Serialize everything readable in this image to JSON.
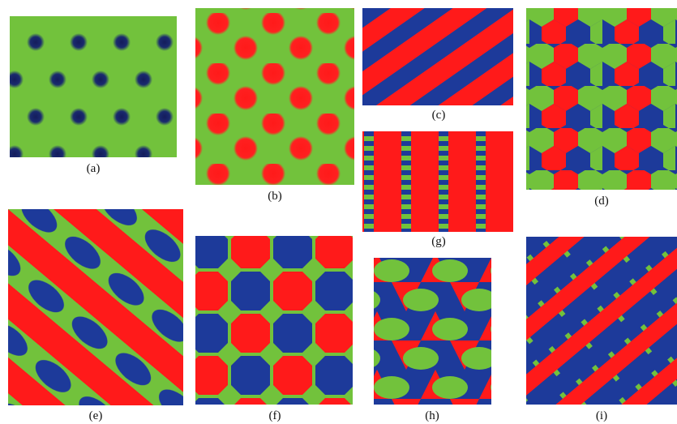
{
  "colors": {
    "green": "#72c23c",
    "red": "#ff1a1a",
    "blue": "#1d3a9a",
    "navy": "#141c5c"
  },
  "panels": [
    {
      "id": "a",
      "caption": "(a)",
      "pattern": "hex lattice of dark dots on green"
    },
    {
      "id": "b",
      "caption": "(b)",
      "pattern": "hex lattice of red dots on green"
    },
    {
      "id": "c",
      "caption": "(c)",
      "pattern": "diagonal red and blue stripes"
    },
    {
      "id": "d",
      "caption": "(d)",
      "pattern": "honeycomb of red, blue and green cells"
    },
    {
      "id": "e",
      "caption": "(e)",
      "pattern": "wavy diagonal red bands with blue ovals"
    },
    {
      "id": "f",
      "caption": "(f)",
      "pattern": "octagon lattice of red and blue on green"
    },
    {
      "id": "g",
      "caption": "(g)",
      "pattern": "vertical red stripes with blue-green checker columns"
    },
    {
      "id": "h",
      "caption": "(h)",
      "pattern": "green ovals with red and blue triangles"
    },
    {
      "id": "i",
      "caption": "(i)",
      "pattern": "diagonal blue and red stripes with green dots"
    }
  ]
}
